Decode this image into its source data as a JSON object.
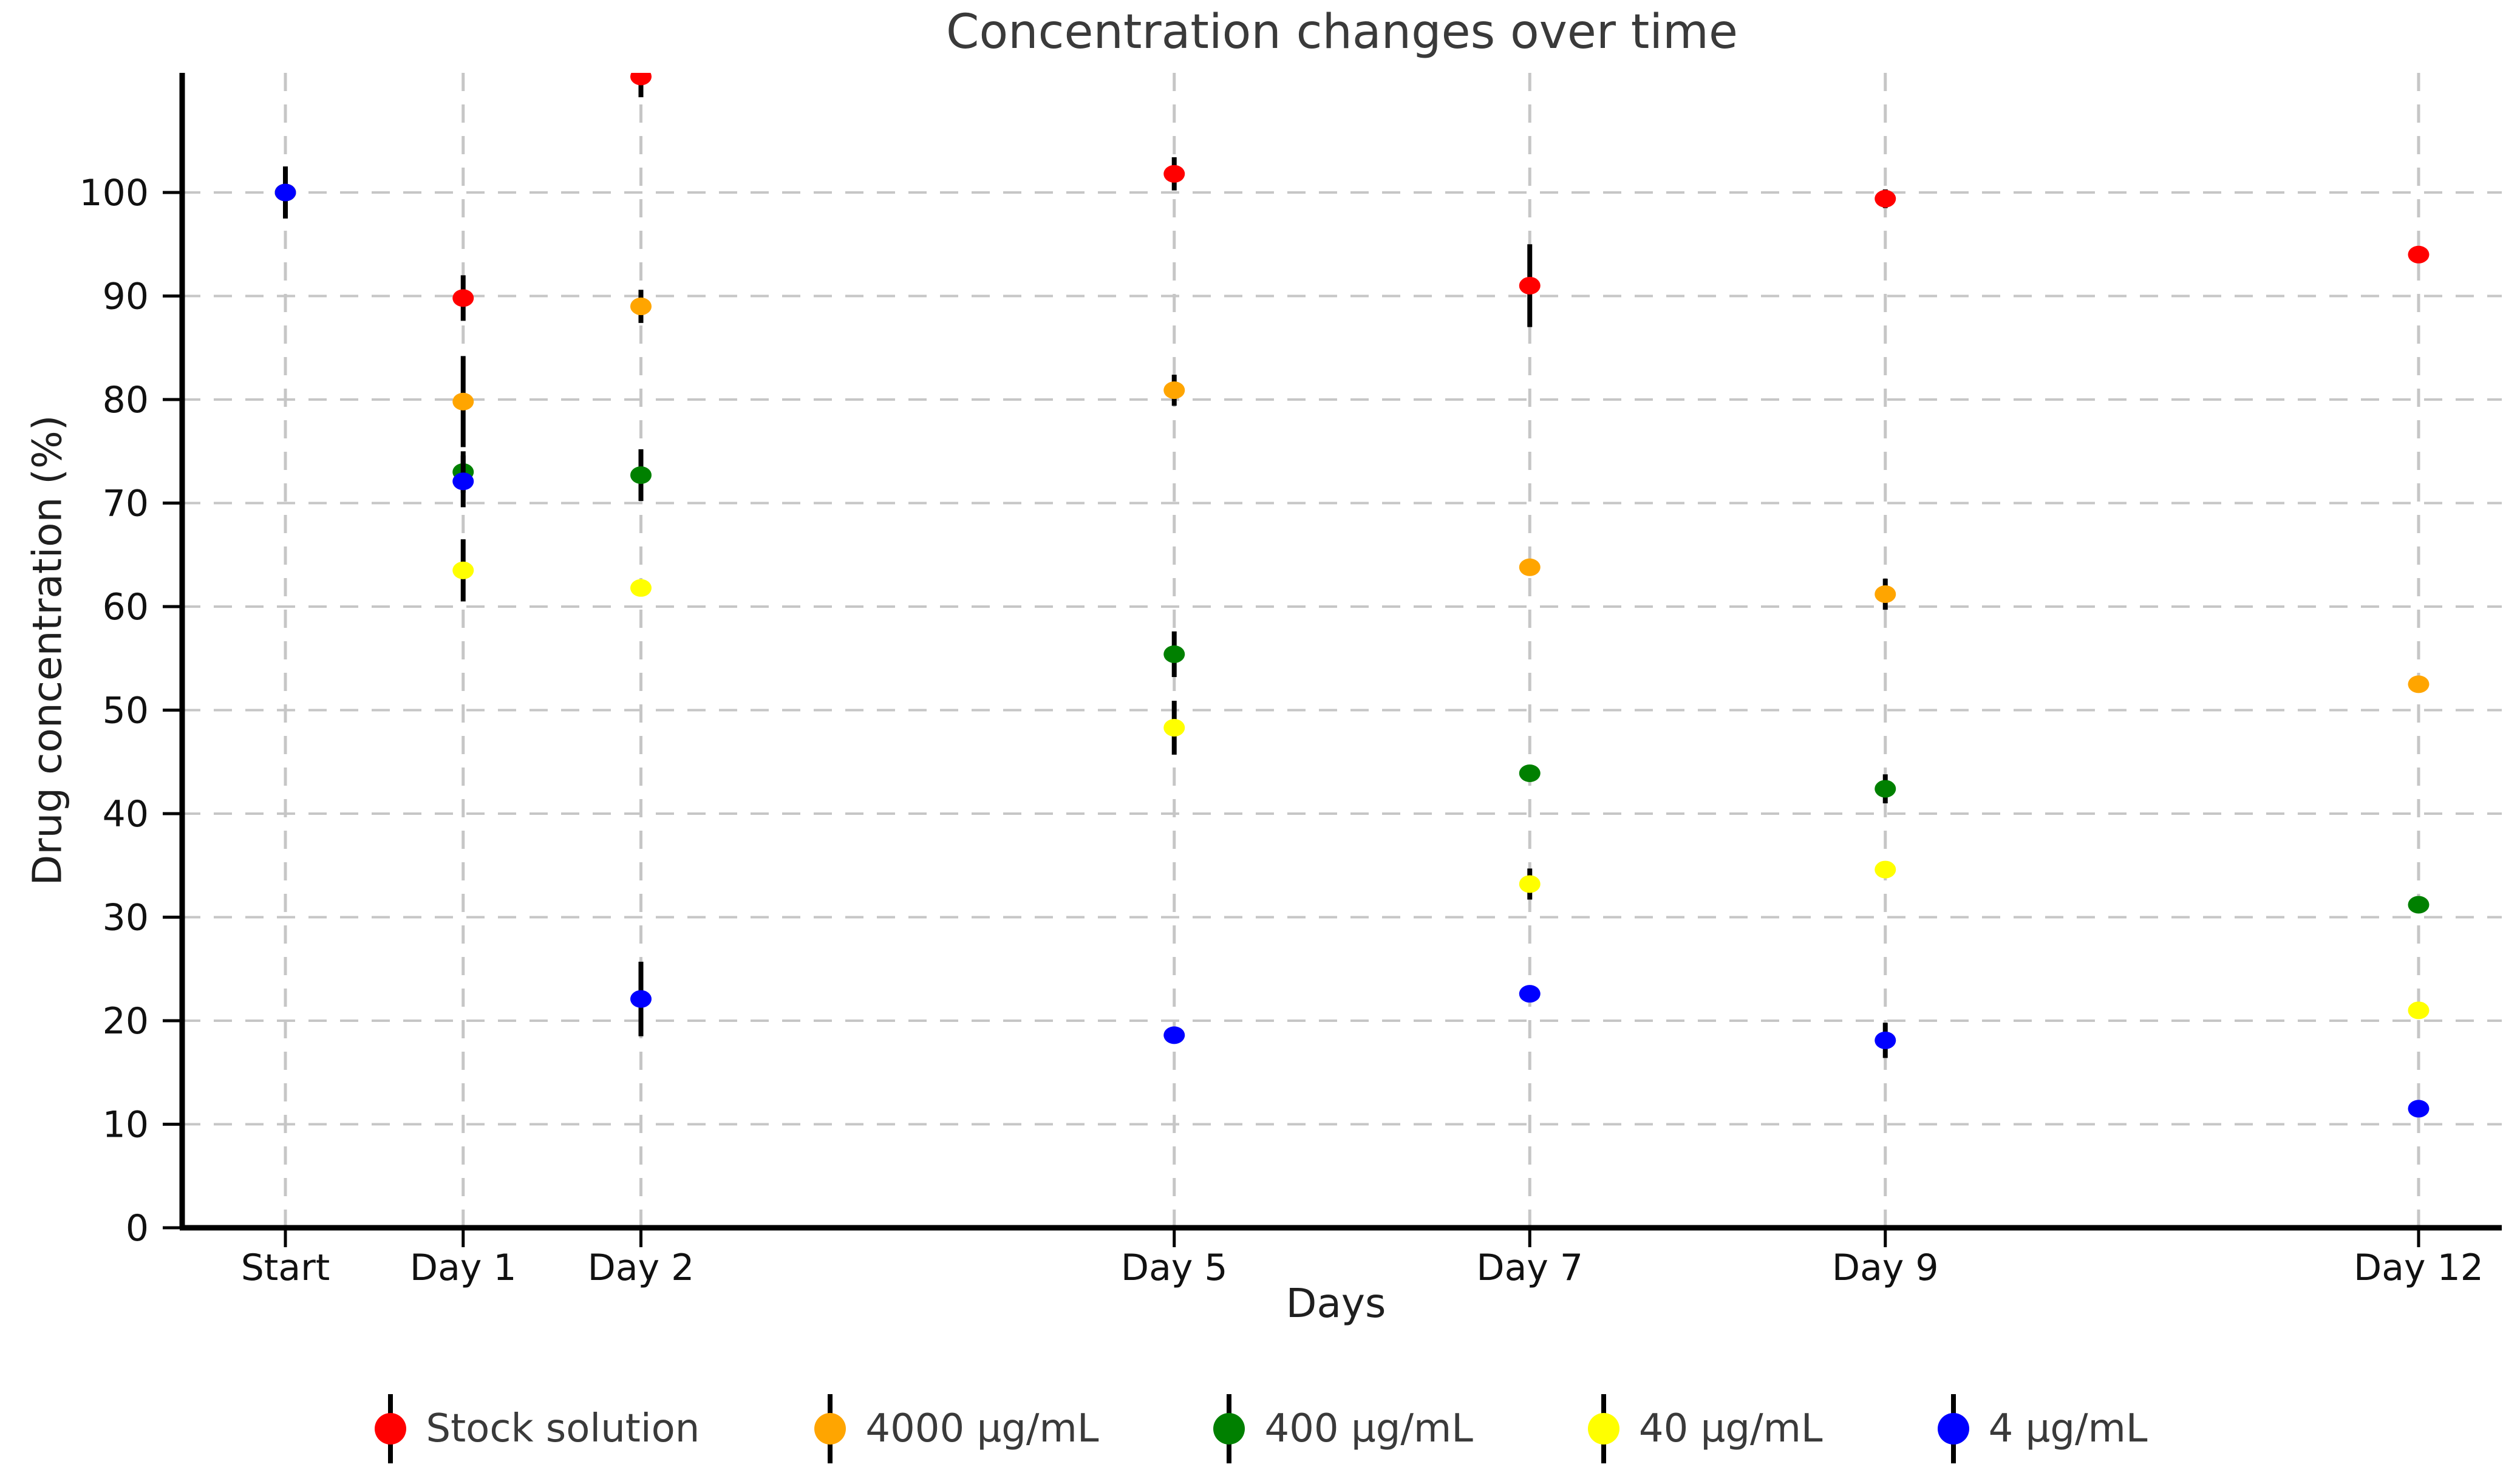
{
  "title": "Concentration changes over time",
  "xlabel": "Days",
  "ylabel": "Drug concentration (%)",
  "chart_data": {
    "type": "scatter",
    "x_days": [
      0,
      1,
      2,
      5,
      7,
      9,
      12
    ],
    "x_labels": [
      "Start",
      "Day 1",
      "Day 2",
      "Day 5",
      "Day 7",
      "Day 9",
      "Day 12"
    ],
    "yticks": [
      0,
      10,
      20,
      30,
      40,
      50,
      60,
      70,
      80,
      90,
      100
    ],
    "ylim": [
      0,
      111.6
    ],
    "grid": "dashed horizontal and vertical gridlines",
    "legend_position": "bottom-center",
    "marker": "filled dot with black error bars",
    "series": [
      {
        "name": "Stock solution",
        "color": "#ff0000",
        "values": [
          100,
          89.8,
          111.2,
          101.8,
          91.0,
          99.4,
          94.0
        ],
        "errors": [
          2.5,
          2.2,
          2.0,
          1.6,
          4.0,
          0.9,
          0.8
        ]
      },
      {
        "name": "4000 µg/mL",
        "color": "#ffa500",
        "values": [
          100,
          79.8,
          89.0,
          80.9,
          63.8,
          61.2,
          52.5
        ],
        "errors": [
          2.5,
          4.4,
          1.6,
          1.5,
          0.6,
          1.5,
          0.6
        ]
      },
      {
        "name": "400 µg/mL",
        "color": "#008000",
        "values": [
          100,
          73.0,
          72.7,
          55.4,
          43.9,
          42.4,
          31.2
        ],
        "errors": [
          2.5,
          2.0,
          2.5,
          2.2,
          0.5,
          1.4,
          0.6
        ]
      },
      {
        "name": "40 µg/mL",
        "color": "#ffff00",
        "values": [
          100,
          63.5,
          61.8,
          48.3,
          33.2,
          34.6,
          21.0
        ],
        "errors": [
          2.5,
          3.0,
          0.8,
          2.6,
          1.5,
          0.6,
          0.5
        ]
      },
      {
        "name": "4 µg/mL",
        "color": "#0000ff",
        "values": [
          100,
          72.1,
          22.1,
          18.6,
          22.6,
          18.1,
          11.5
        ],
        "errors": [
          2.5,
          2.5,
          3.6,
          0.6,
          0.5,
          1.7,
          0.5
        ]
      }
    ],
    "styles": {
      "grid_color": "#c6c6c6",
      "spine_color": "#000000",
      "tick_text_color": "#111111",
      "errorbar_color": "#000000"
    }
  }
}
